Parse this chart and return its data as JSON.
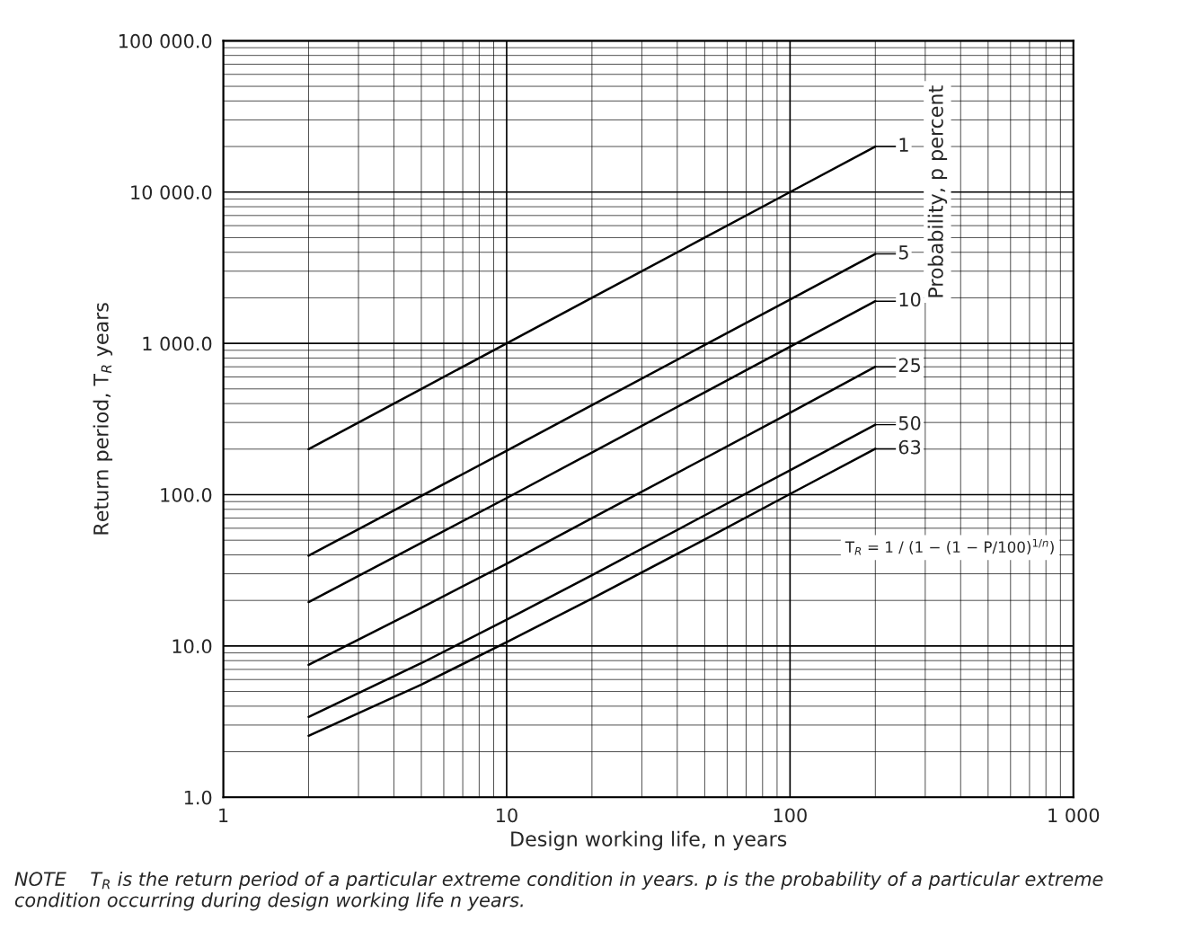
{
  "chart_data": {
    "type": "line",
    "xlabel": "Design working life, n years",
    "ylabel": "Return period, T$_{R}$ years",
    "legend_title": "Probability, p percent",
    "x": [
      2,
      5,
      10,
      20,
      50,
      100,
      200
    ],
    "series": [
      {
        "name": "1",
        "color": "#000000",
        "values": [
          200,
          500,
          1000,
          2000,
          5000,
          10000,
          20000
        ]
      },
      {
        "name": "5",
        "color": "#000000",
        "values": [
          39.5,
          98,
          195,
          390,
          975,
          1950,
          3900
        ]
      },
      {
        "name": "10",
        "color": "#000000",
        "values": [
          19.5,
          48,
          95,
          190,
          475,
          950,
          1900
        ]
      },
      {
        "name": "25",
        "color": "#000000",
        "values": [
          7.5,
          17.9,
          35,
          70,
          174,
          348,
          700
        ]
      },
      {
        "name": "50",
        "color": "#000000",
        "values": [
          3.4,
          7.7,
          14.9,
          29.4,
          73,
          145,
          290
        ]
      },
      {
        "name": "63",
        "color": "#000000",
        "values": [
          2.55,
          5.55,
          10.6,
          20.6,
          50.6,
          101,
          201
        ]
      }
    ],
    "log": "xy",
    "xlim": [
      1,
      1000
    ],
    "ylim": [
      1,
      100000
    ],
    "xticks": [
      1,
      10,
      100,
      {
        "value": 1000,
        "label": "1 000"
      }
    ],
    "yticks": [
      {
        "value": 1,
        "label": "1.0"
      },
      {
        "value": 10,
        "label": "10.0"
      },
      {
        "value": 100,
        "label": "100.0"
      },
      {
        "value": 1000,
        "label": "1 000.0"
      },
      {
        "value": 10000,
        "label": "10 000.0"
      },
      {
        "value": 100000,
        "label": "100 000.0"
      }
    ],
    "grid": true,
    "legend": "right",
    "marker": "none",
    "line_style": "solid",
    "annotations": [
      "T$_{R}$ = 1 / (1 − (1 − P/100)$^{1/n}$)",
      "NOTE    T$_{R}$ is the return period of a particular extreme condition in years. p is the probability of a particular extreme condition occurring during design working life n years."
    ]
  }
}
